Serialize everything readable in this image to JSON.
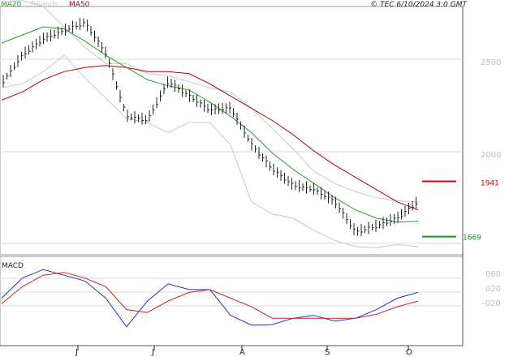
{
  "header": {
    "legend": [
      {
        "label": "MA20",
        "color": "#1fa31f"
      },
      {
        "label": "BBands",
        "color": "#c8c8c8"
      },
      {
        "label": "MA50",
        "color": "#b30000"
      }
    ],
    "copyright": "© TEC 6/10/2024 3:0 GMT"
  },
  "colors": {
    "price": "#222222",
    "ma20": "#1fa31f",
    "ma50": "#b30000",
    "bbands": "#c8c8c8",
    "macd": "#2233cc",
    "signal": "#cc2222",
    "resistance": "#d40000",
    "support": "#119911",
    "grid": "#d8d8d8"
  },
  "levels": {
    "resistance": {
      "value": 1941,
      "label": "1941"
    },
    "support": {
      "value": 1669,
      "label": "1669"
    }
  },
  "macd_panel": {
    "label": "MACD",
    "ticks": [
      "060",
      "020",
      "-020"
    ]
  },
  "chart_data": [
    {
      "type": "line",
      "title": "",
      "y_ticks": [
        "2500",
        "2000"
      ],
      "x_tick_labels": [
        "J",
        "J",
        "A",
        "S",
        "O"
      ],
      "ylim": [
        1580,
        2800
      ],
      "series": [
        {
          "name": "MA20",
          "values": [
            2620,
            2660,
            2700,
            2690,
            2630,
            2560,
            2500,
            2440,
            2410,
            2390,
            2330,
            2260,
            2180,
            2080,
            2000,
            1930,
            1860,
            1800,
            1760,
            1740,
            1745
          ]
        },
        {
          "name": "MA50",
          "values": [
            2340,
            2380,
            2440,
            2480,
            2500,
            2510,
            2500,
            2480,
            2480,
            2470,
            2420,
            2360,
            2300,
            2240,
            2170,
            2090,
            2020,
            1960,
            1900,
            1840,
            1800
          ]
        },
        {
          "name": "BBands upper",
          "values": [
            2820,
            2830,
            2800,
            2700,
            2600,
            2520,
            2520,
            2470,
            2460,
            2430,
            2400,
            2380,
            2300,
            2200,
            2100,
            1990,
            1930,
            1890,
            1860,
            1845,
            1840
          ]
        },
        {
          "name": "BBands lower",
          "values": [
            2400,
            2420,
            2480,
            2560,
            2450,
            2350,
            2250,
            2230,
            2180,
            2230,
            2230,
            2120,
            1840,
            1780,
            1760,
            1700,
            1650,
            1620,
            1615,
            1630,
            1620
          ]
        },
        {
          "name": "Price",
          "values": [
            2420,
            2560,
            2640,
            2680,
            2720,
            2570,
            2260,
            2240,
            2430,
            2360,
            2290,
            2300,
            2120,
            2000,
            1920,
            1900,
            1840,
            1690,
            1720,
            1760,
            1840
          ]
        }
      ]
    },
    {
      "type": "line",
      "title": "MACD",
      "y_ticks": [
        "060",
        "020",
        "-020"
      ],
      "ylim": [
        -70,
        80
      ],
      "series": [
        {
          "name": "MACD",
          "values": [
            10,
            45,
            60,
            50,
            40,
            10,
            -40,
            5,
            35,
            25,
            25,
            -20,
            -37,
            -36,
            -25,
            -20,
            -30,
            -25,
            -10,
            10,
            20
          ]
        },
        {
          "name": "Signal",
          "values": [
            0,
            30,
            50,
            55,
            45,
            30,
            -10,
            -15,
            5,
            20,
            25,
            10,
            -5,
            -25,
            -25,
            -25,
            -25,
            -25,
            -18,
            -5,
            5
          ]
        }
      ]
    }
  ]
}
